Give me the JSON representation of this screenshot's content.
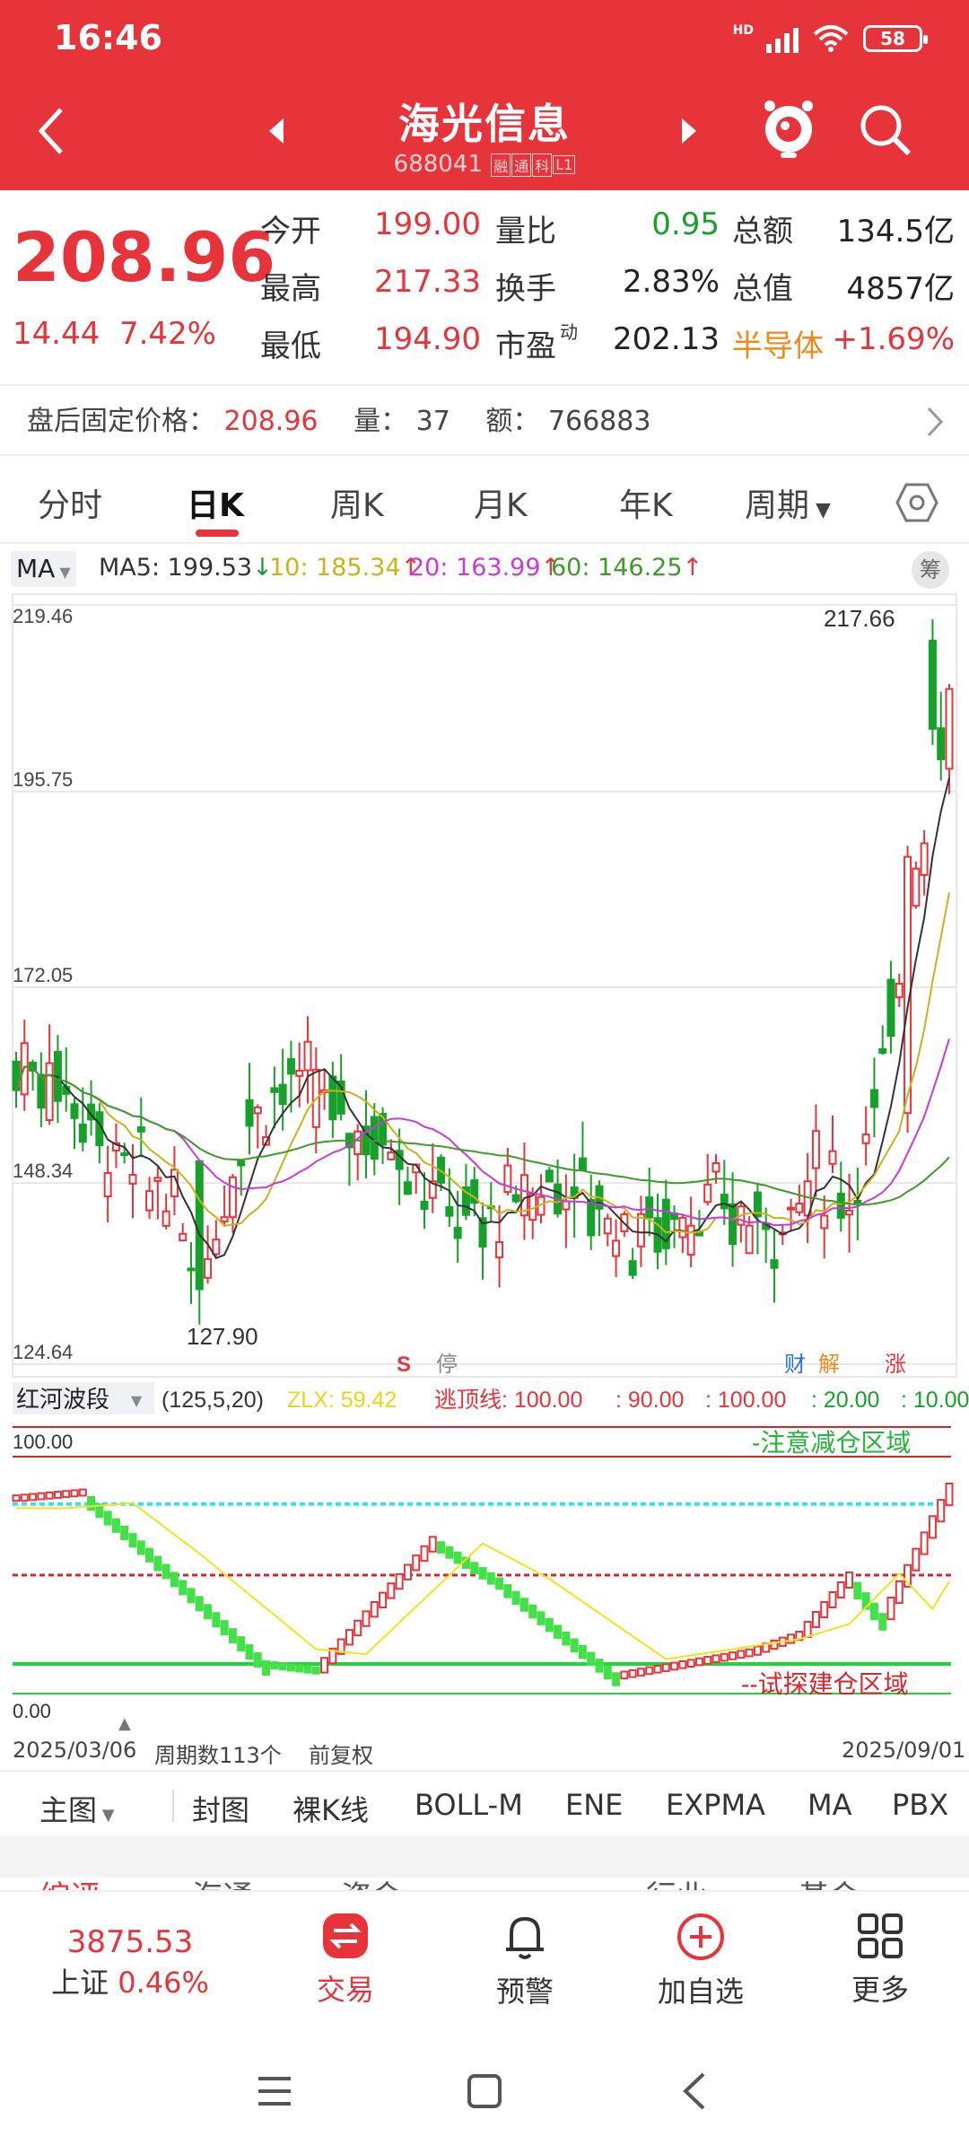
{
  "status": {
    "time": "16:46",
    "battery": "58",
    "hd": "HD"
  },
  "header": {
    "title": "海光信息",
    "code": "688041",
    "tags": [
      "融",
      "通",
      "科",
      "L1"
    ]
  },
  "quote": {
    "price": "208.96",
    "change": "14.44",
    "change_pct": "7.42%",
    "rows": [
      [
        {
          "l": "今开",
          "v": "199.00",
          "c": "red"
        },
        {
          "l": "量比",
          "v": "0.95",
          "c": "green"
        },
        {
          "l": "总额",
          "v": "134.5亿",
          "c": "dark"
        }
      ],
      [
        {
          "l": "最高",
          "v": "217.33",
          "c": "red"
        },
        {
          "l": "换手",
          "v": "2.83%",
          "c": "dark"
        },
        {
          "l": "总值",
          "v": "4857亿",
          "c": "dark"
        }
      ],
      [
        {
          "l": "最低",
          "v": "194.90",
          "c": "red"
        },
        {
          "l": "市盈",
          "v": "202.13",
          "c": "dark",
          "sup": "动"
        },
        {
          "l": "半导体",
          "v": "+1.69%",
          "c": "red",
          "lc": "orange"
        }
      ]
    ]
  },
  "after_hours": {
    "label": "盘后固定价格：",
    "price": "208.96",
    "vol_label": "量：",
    "vol": "37",
    "amt_label": "额：",
    "amt": "766883"
  },
  "tabs": [
    "分时",
    "日K",
    "周K",
    "月K",
    "年K",
    "周期"
  ],
  "ma": {
    "selector": "MA",
    "ma5": "MA5: 199.53",
    "ma10": "10: 185.34",
    "ma20": "20: 163.99",
    "ma60": "60: 146.25",
    "chip": "筹"
  },
  "kline": {
    "price_labels": [
      "219.46",
      "195.75",
      "172.05",
      "148.34",
      "124.64"
    ],
    "high_label": "217.66",
    "low_label": "127.90",
    "markers": {
      "s": "S",
      "stop": "停",
      "cai": "财",
      "jie": "解",
      "zhang": "涨"
    },
    "colors": {
      "up": "#e7343b",
      "down": "#16a12a",
      "ma5": "#333333",
      "ma10": "#c9b21a",
      "ma20": "#c83bd8",
      "ma60": "#3e9a2c"
    }
  },
  "indicator": {
    "name": "红河波段",
    "params": "(125,5,20)",
    "zlx": "ZLX: 59.42",
    "escape": "逃顶线: 100.00",
    "v1": ": 90.00",
    "v2": ": 100.00",
    "v3": ": 20.00",
    "v4": ": 10.00",
    "top_label": "100.00",
    "bottom_label": "0.00",
    "zone_top": "-注意减仓区域",
    "zone_bottom": "--试探建仓区域"
  },
  "footer": {
    "start": "2025/03/06",
    "period": "周期数113个",
    "adj": "前复权",
    "end": "2025/09/01"
  },
  "ind_tabs": [
    "主图",
    "封图",
    "裸K线",
    "BOLL-M",
    "ENE",
    "EXPMA",
    "MA",
    "PBX"
  ],
  "partial_row": [
    "综评",
    "海通",
    "资金",
    "行业",
    "基金"
  ],
  "nav": {
    "index_value": "3875.53",
    "index_name": "上证",
    "index_pct": "0.46%",
    "trade": "交易",
    "alert": "预警",
    "add": "加自选",
    "more": "更多"
  }
}
